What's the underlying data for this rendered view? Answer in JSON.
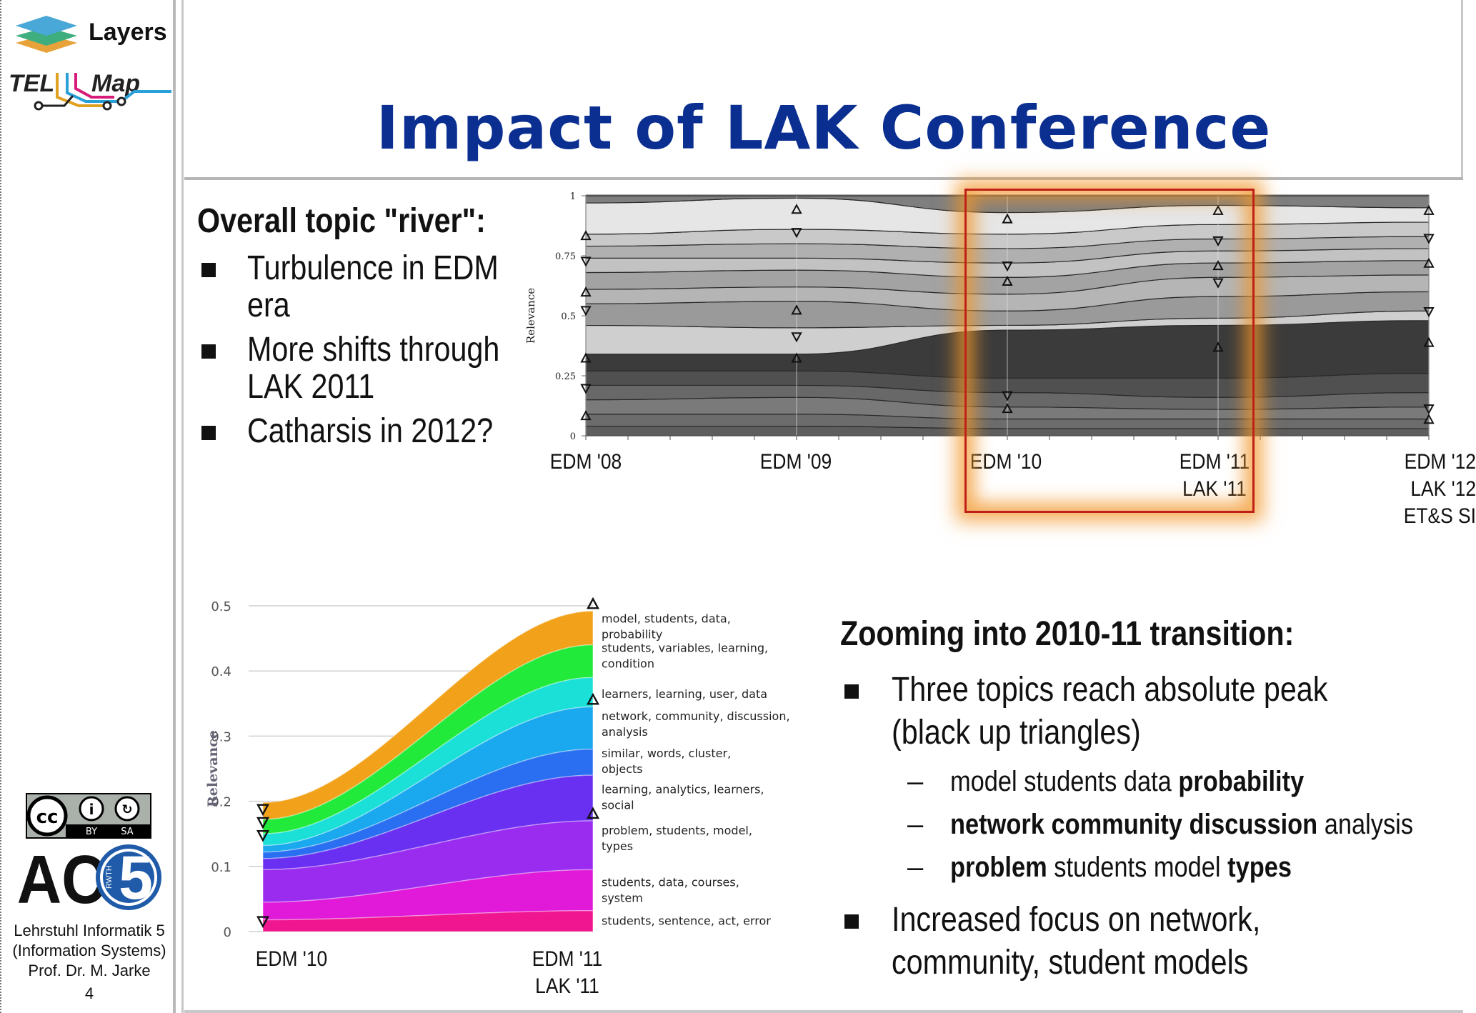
{
  "sidebar": {
    "layers_label": "Layers",
    "logo_telmap": "TEL Map",
    "cc_by": "BY",
    "cc_sa": "SA",
    "ac5_logo": "AC5",
    "rwth": "RWTH",
    "affiliation_line1": "Lehrstuhl Informatik 5",
    "affiliation_line2": "(Information Systems)",
    "affiliation_line3": "Prof. Dr. M. Jarke",
    "page_number": "4"
  },
  "slide": {
    "title": "Impact of LAK Conference",
    "river_heading": "Overall topic \"river\":",
    "river_bullets": [
      {
        "line1": "Turbulence in EDM",
        "line2": "era"
      },
      {
        "line1": "More shifts through",
        "line2": "LAK 2011"
      },
      {
        "line1": "Catharsis in 2012?",
        "line2": ""
      }
    ],
    "zoom_heading": "Zooming into 2010-11 transition:",
    "zoom_bullet1_line1": "Three topics reach absolute peak",
    "zoom_bullet1_line2": "(black up triangles)",
    "sub_bullets": [
      {
        "plain_a": "model students data ",
        "bold_a": "probability",
        "plain_b": "",
        "bold_b": "",
        "plain_c": ""
      },
      {
        "plain_a": "",
        "bold_a": "network community discussion",
        "plain_b": " analysis",
        "bold_b": "",
        "plain_c": ""
      },
      {
        "plain_a": "",
        "bold_a": "problem",
        "plain_b": " students model ",
        "bold_b": "types",
        "plain_c": ""
      }
    ],
    "zoom_bullet2_line1": "Increased focus on network,",
    "zoom_bullet2_line2": "community, student models"
  },
  "chart_data": [
    {
      "type": "area",
      "ylabel": "Relevance",
      "ylim": [
        0,
        1
      ],
      "yticks": [
        "1",
        "0.75",
        "0.5",
        "0.25",
        "0"
      ],
      "x": [
        "EDM '08",
        "EDM '09",
        "EDM '10",
        "EDM '11|LAK '11",
        "EDM '12|LAK '12|ET&S SI"
      ],
      "highlight": [
        "EDM '10",
        "EDM '11|LAK '11"
      ],
      "series_boundaries": [
        [
          0.04,
          0.04,
          0.03,
          0.03,
          0.03
        ],
        [
          0.09,
          0.09,
          0.07,
          0.07,
          0.07
        ],
        [
          0.15,
          0.16,
          0.12,
          0.11,
          0.12
        ],
        [
          0.21,
          0.21,
          0.18,
          0.16,
          0.18
        ],
        [
          0.27,
          0.27,
          0.24,
          0.24,
          0.26
        ],
        [
          0.34,
          0.34,
          0.44,
          0.46,
          0.48
        ],
        [
          0.46,
          0.45,
          0.46,
          0.49,
          0.52
        ],
        [
          0.55,
          0.56,
          0.52,
          0.58,
          0.6
        ],
        [
          0.61,
          0.62,
          0.59,
          0.66,
          0.67
        ],
        [
          0.68,
          0.69,
          0.66,
          0.72,
          0.73
        ],
        [
          0.74,
          0.74,
          0.72,
          0.77,
          0.78
        ],
        [
          0.79,
          0.8,
          0.78,
          0.82,
          0.83
        ],
        [
          0.84,
          0.86,
          0.84,
          0.88,
          0.89
        ],
        [
          0.97,
          0.99,
          0.93,
          0.96,
          0.95
        ],
        [
          1.0,
          1.0,
          1.0,
          1.0,
          1.0
        ]
      ],
      "dark_band": 5,
      "colors": [
        "#5e5e5e",
        "#6c6c6c",
        "#7a7a7a",
        "#686868",
        "#505050",
        "#3b3b3b",
        "#cfcfcf",
        "#9a9a9a",
        "#b5b5b5",
        "#a3a3a3",
        "#c2c2c2",
        "#b0b0b0",
        "#c9c9c9",
        "#e6e6e6",
        "#7f7f7f"
      ]
    },
    {
      "type": "area",
      "ylabel": "Relevance",
      "ylim": [
        0,
        0.5
      ],
      "yticks": [
        "0.5",
        "0.4",
        "0.3",
        "0.2",
        "0.1",
        "0"
      ],
      "x": [
        "EDM '10",
        "EDM '11|LAK '11"
      ],
      "series": [
        {
          "name": "students, sentence, act, error",
          "values": [
            0.018,
            0.032
          ],
          "color": "#f0168f"
        },
        {
          "name": "students, data, courses, system",
          "values": [
            0.045,
            0.095
          ],
          "color": "#e01ad8"
        },
        {
          "name": "problem, students, model, types",
          "values": [
            0.095,
            0.17
          ],
          "color": "#9a2cf0"
        },
        {
          "name": "learning, analytics, learners, social",
          "values": [
            0.112,
            0.24
          ],
          "color": "#6a30f2"
        },
        {
          "name": "similar, words, cluster, objects",
          "values": [
            0.122,
            0.28
          ],
          "color": "#2a6ff2"
        },
        {
          "name": "network, community, discussion, analysis",
          "values": [
            0.132,
            0.345
          ],
          "color": "#1aa8ee"
        },
        {
          "name": "learners, learning, user, data",
          "values": [
            0.15,
            0.39
          ],
          "color": "#1ae0d8"
        },
        {
          "name": "students, variables, learning, condition",
          "values": [
            0.172,
            0.44
          ],
          "color": "#22ea3a"
        },
        {
          "name": "model, students, data, probability",
          "values": [
            0.198,
            0.492
          ],
          "color": "#f2a21a"
        }
      ]
    }
  ]
}
